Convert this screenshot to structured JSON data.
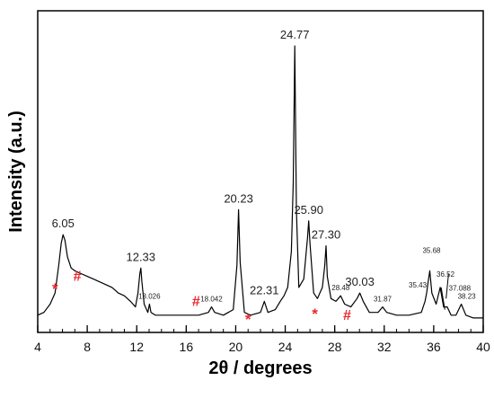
{
  "chart_data": {
    "type": "line",
    "title": "",
    "xlabel": "2θ /  degrees",
    "ylabel": "Intensity (a.u.)",
    "xlim": [
      4,
      40
    ],
    "ylim": [
      0,
      100
    ],
    "x_ticks": [
      "4",
      "8",
      "12",
      "16",
      "20",
      "24",
      "28",
      "32",
      "36",
      "40"
    ],
    "x_minor_step": 1,
    "y_ticks_shown": false,
    "line_color": "#000000",
    "marker_color": "#e8262b",
    "series": [
      {
        "x": [
          4.0,
          4.5,
          5.0,
          5.4,
          5.7,
          5.9,
          6.05,
          6.2,
          6.4,
          6.7,
          7.0,
          7.5,
          8.0,
          8.5,
          9.0,
          9.5,
          10.0,
          10.5,
          11.0,
          11.5,
          11.9,
          12.1,
          12.25,
          12.33,
          12.42,
          12.6,
          12.9,
          13.026,
          13.15,
          13.5,
          14.0,
          15.0,
          16.0,
          17.0,
          17.8,
          18.042,
          18.3,
          19.0,
          19.8,
          20.1,
          20.23,
          20.36,
          20.7,
          21.2,
          22.0,
          22.31,
          22.6,
          23.2,
          23.6,
          23.9,
          24.2,
          24.5,
          24.65,
          24.77,
          24.9,
          25.1,
          25.5,
          25.8,
          25.9,
          26.0,
          26.3,
          26.6,
          27.0,
          27.2,
          27.3,
          27.4,
          27.7,
          28.1,
          28.48,
          28.8,
          29.3,
          29.8,
          30.03,
          30.3,
          30.8,
          31.5,
          31.87,
          32.2,
          33.0,
          34.0,
          35.0,
          35.3,
          35.43,
          35.55,
          35.68,
          35.85,
          36.2,
          36.52,
          36.8,
          37.088,
          37.4,
          37.8,
          38.23,
          38.6,
          39.2,
          40.0
        ],
        "y": [
          2,
          3,
          6,
          10,
          20,
          28,
          31,
          29,
          23,
          19,
          18,
          17,
          16,
          15,
          14,
          13,
          12,
          10,
          9,
          7,
          5,
          10,
          17,
          19,
          14,
          6,
          3,
          6,
          3,
          2,
          2,
          2,
          2,
          2,
          3,
          5,
          3,
          2,
          4,
          20,
          40,
          21,
          3,
          2,
          3,
          7,
          3,
          4,
          7,
          9,
          12,
          25,
          50,
          99,
          40,
          12,
          15,
          30,
          36,
          28,
          10,
          8,
          12,
          20,
          27,
          16,
          8,
          7,
          9,
          6,
          5,
          8,
          10,
          7,
          3,
          3,
          5,
          3,
          2,
          2,
          3,
          7,
          10,
          14,
          18,
          10,
          6,
          12,
          5,
          5,
          2,
          2,
          6,
          2,
          1,
          1
        ]
      }
    ],
    "peak_labels": [
      {
        "text": "6.05",
        "x": 6.05,
        "y": 31,
        "size": "big"
      },
      {
        "text": "12.33",
        "x": 12.33,
        "y": 19,
        "size": "big"
      },
      {
        "text": "13.026",
        "x": 13.026,
        "y": 6,
        "size": "small"
      },
      {
        "text": "18.042",
        "x": 18.042,
        "y": 5,
        "size": "small"
      },
      {
        "text": "20.23",
        "x": 20.23,
        "y": 40,
        "size": "big"
      },
      {
        "text": "22.31",
        "x": 22.31,
        "y": 7,
        "size": "big"
      },
      {
        "text": "24.77",
        "x": 24.77,
        "y": 99,
        "size": "big"
      },
      {
        "text": "25.90",
        "x": 25.9,
        "y": 36,
        "size": "big"
      },
      {
        "text": "27.30",
        "x": 27.3,
        "y": 27,
        "size": "big"
      },
      {
        "text": "28.48",
        "x": 28.48,
        "y": 9,
        "size": "small"
      },
      {
        "text": "30.03",
        "x": 30.03,
        "y": 10,
        "size": "big"
      },
      {
        "text": "31.87",
        "x": 31.87,
        "y": 5,
        "size": "small"
      },
      {
        "text": "35.43",
        "x": 35.43,
        "y": 10,
        "size": "small"
      },
      {
        "text": "35.68",
        "x": 35.68,
        "y": 18,
        "size": "small"
      },
      {
        "text": "36.52",
        "x": 36.52,
        "y": 12,
        "size": "small"
      },
      {
        "text": "37.088",
        "x": 37.088,
        "y": 5,
        "size": "small"
      },
      {
        "text": "38.23",
        "x": 38.23,
        "y": 6,
        "size": "small"
      }
    ],
    "markers": [
      {
        "symbol": "*",
        "x": 5.4,
        "y": 11
      },
      {
        "symbol": "#",
        "x": 7.2,
        "y": 15
      },
      {
        "symbol": "#",
        "x": 16.8,
        "y": 6
      },
      {
        "symbol": "*",
        "x": 21.0,
        "y": 0
      },
      {
        "symbol": "*",
        "x": 26.4,
        "y": 2
      },
      {
        "symbol": "#",
        "x": 29.0,
        "y": 1
      }
    ]
  }
}
